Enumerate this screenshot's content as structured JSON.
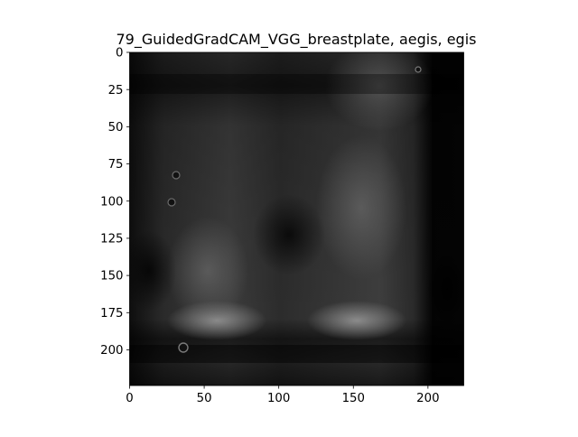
{
  "figure": {
    "title": "79_GuidedGradCAM_VGG_breastplate, aegis, egis",
    "colormap": "gray",
    "background_color": "#ffffff",
    "image_description_colors": {
      "dark": "#050505",
      "mid": "#3a3a3a",
      "bright": "#8a8a8a"
    }
  },
  "chart_data": {
    "type": "heatmap",
    "title": "79_GuidedGradCAM_VGG_breastplate, aegis, egis",
    "xlabel": "",
    "ylabel": "",
    "xlim": [
      0,
      224
    ],
    "ylim": [
      224,
      0
    ],
    "x_ticks": [
      0,
      50,
      100,
      150,
      200
    ],
    "y_ticks": [
      0,
      25,
      50,
      75,
      100,
      125,
      150,
      175,
      200
    ],
    "x_tick_labels": [
      "0",
      "50",
      "100",
      "150",
      "200"
    ],
    "y_tick_labels": [
      "0",
      "25",
      "50",
      "75",
      "100",
      "125",
      "150",
      "175",
      "200"
    ],
    "grid": false,
    "image_size": [
      224,
      224
    ]
  }
}
